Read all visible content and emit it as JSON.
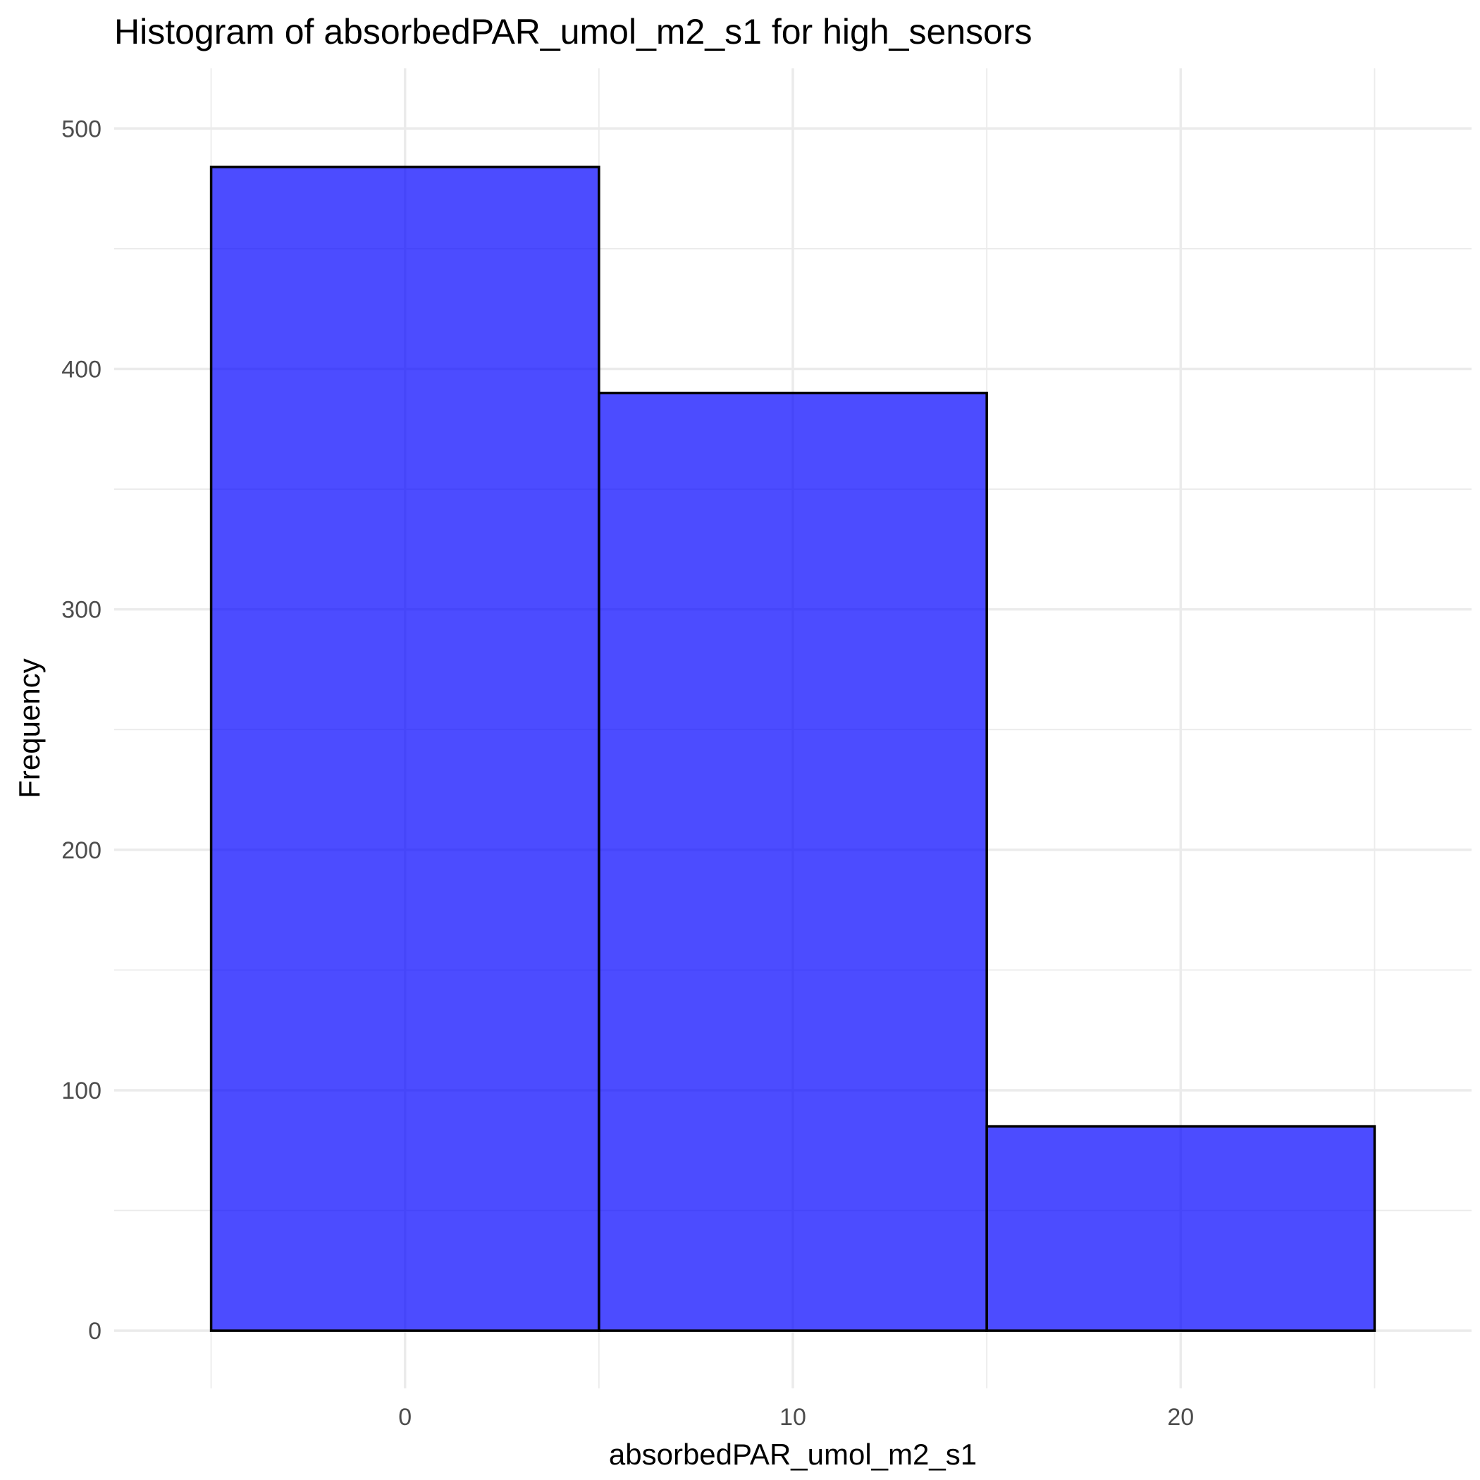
{
  "chart_data": {
    "type": "bar",
    "title": "Histogram of absorbedPAR_umol_m2_s1 for high_sensors",
    "xlabel": "absorbedPAR_umol_m2_s1",
    "ylabel": "Frequency",
    "bins": [
      {
        "x0": -5,
        "x1": 5,
        "value": 484
      },
      {
        "x0": 5,
        "x1": 15,
        "value": 390
      },
      {
        "x0": 15,
        "x1": 25,
        "value": 85
      }
    ],
    "xlim": [
      -7.5,
      27.5
    ],
    "ylim": [
      -24,
      525
    ],
    "x_ticks": [
      0,
      10,
      20
    ],
    "y_ticks": [
      0,
      100,
      200,
      300,
      400,
      500
    ],
    "grid": true,
    "bar_fill": "#0000FF",
    "bar_opacity": 0.7,
    "bar_outline": "#000000"
  }
}
